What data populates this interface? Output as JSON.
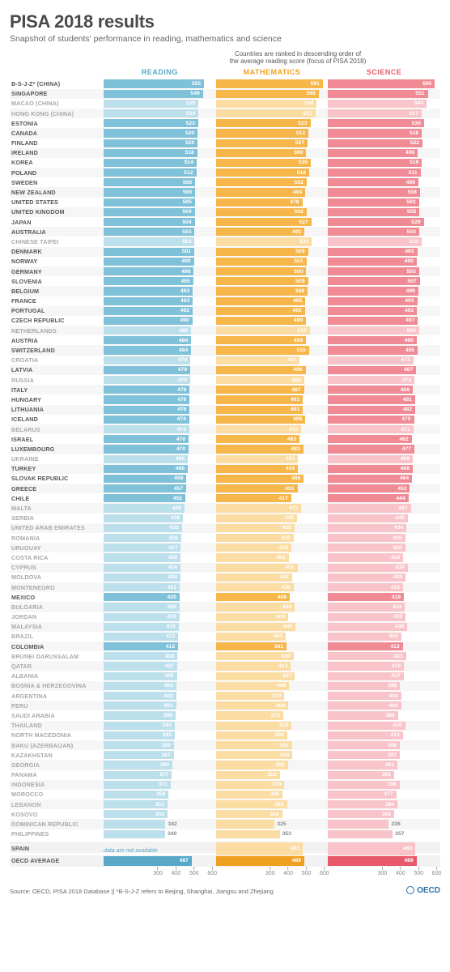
{
  "title": "PISA 2018 results",
  "subtitle": "Snapshot of students' performance in reading, mathematics and science",
  "rank_note": "Countries are ranked in descending order of\nthe average reading score (focus of PISA 2018)",
  "headers": {
    "reading": "READING",
    "math": "MATHEMATICS",
    "science": "SCIENCE"
  },
  "colors": {
    "reading_header": "#5aa8c8",
    "math_header": "#f0a020",
    "science_header": "#e85a6a",
    "reading_bar": "#7fc1d9",
    "math_bar": "#f6b64a",
    "science_bar": "#f08a95",
    "reading_muted": "#bcdfec",
    "math_muted": "#fbdca3",
    "science_muted": "#f8c3c9",
    "na_text": "#5aa8c8"
  },
  "axis": {
    "min": 250,
    "max": 620,
    "ticks": [
      300,
      400,
      500,
      600
    ]
  },
  "bar_max": 620,
  "rows": [
    {
      "name": "B-S-J-Z* (CHINA)",
      "r": 555,
      "m": 591,
      "s": 590
    },
    {
      "name": "SINGAPORE",
      "r": 549,
      "m": 569,
      "s": 551
    },
    {
      "name": "MACAO (CHINA)",
      "r": 525,
      "m": 558,
      "s": 544,
      "muted": true
    },
    {
      "name": "HONG KONG (CHINA)",
      "r": 524,
      "m": 551,
      "s": 517,
      "muted": true
    },
    {
      "name": "ESTONIA",
      "r": 523,
      "m": 523,
      "s": 530
    },
    {
      "name": "CANADA",
      "r": 520,
      "m": 512,
      "s": 518
    },
    {
      "name": "FINLAND",
      "r": 520,
      "m": 507,
      "s": 522
    },
    {
      "name": "IRELAND",
      "r": 518,
      "m": 500,
      "s": 496
    },
    {
      "name": "KOREA",
      "r": 514,
      "m": 526,
      "s": 519
    },
    {
      "name": "POLAND",
      "r": 512,
      "m": 516,
      "s": 511
    },
    {
      "name": "SWEDEN",
      "r": 506,
      "m": 502,
      "s": 499
    },
    {
      "name": "NEW ZEALAND",
      "r": 506,
      "m": 494,
      "s": 508
    },
    {
      "name": "UNITED STATES",
      "r": 505,
      "m": 478,
      "s": 502
    },
    {
      "name": "UNITED KINGDOM",
      "r": 504,
      "m": 502,
      "s": 505
    },
    {
      "name": "JAPAN",
      "r": 504,
      "m": 527,
      "s": 529
    },
    {
      "name": "AUSTRALIA",
      "r": 503,
      "m": 491,
      "s": 503
    },
    {
      "name": "CHINESE TAIPEI",
      "r": 503,
      "m": 531,
      "s": 516,
      "muted": true
    },
    {
      "name": "DENMARK",
      "r": 501,
      "m": 509,
      "s": 493
    },
    {
      "name": "NORWAY",
      "r": 499,
      "m": 501,
      "s": 490
    },
    {
      "name": "GERMANY",
      "r": 498,
      "m": 500,
      "s": 503
    },
    {
      "name": "SLOVENIA",
      "r": 495,
      "m": 509,
      "s": 507
    },
    {
      "name": "BELGIUM",
      "r": 493,
      "m": 508,
      "s": 499
    },
    {
      "name": "FRANCE",
      "r": 493,
      "m": 495,
      "s": 493
    },
    {
      "name": "PORTUGAL",
      "r": 492,
      "m": 492,
      "s": 492
    },
    {
      "name": "CZECH REPUBLIC",
      "r": 490,
      "m": 499,
      "s": 497
    },
    {
      "name": "NETHERLANDS",
      "r": 485,
      "m": 519,
      "s": 503,
      "muted": true
    },
    {
      "name": "AUSTRIA",
      "r": 484,
      "m": 499,
      "s": 490
    },
    {
      "name": "SWITZERLAND",
      "r": 484,
      "m": 515,
      "s": 495
    },
    {
      "name": "CROATIA",
      "r": 479,
      "m": 464,
      "s": 472,
      "muted": true
    },
    {
      "name": "LATVIA",
      "r": 479,
      "m": 496,
      "s": 487
    },
    {
      "name": "RUSSIA",
      "r": 479,
      "m": 488,
      "s": 478,
      "muted": true
    },
    {
      "name": "ITALY",
      "r": 476,
      "m": 487,
      "s": 468
    },
    {
      "name": "HUNGARY",
      "r": 476,
      "m": 481,
      "s": 481
    },
    {
      "name": "LITHUANIA",
      "r": 476,
      "m": 481,
      "s": 482
    },
    {
      "name": "ICELAND",
      "r": 474,
      "m": 495,
      "s": 475
    },
    {
      "name": "BELARUS",
      "r": 474,
      "m": 472,
      "s": 471,
      "muted": true
    },
    {
      "name": "ISRAEL",
      "r": 470,
      "m": 463,
      "s": 462
    },
    {
      "name": "LUXEMBOURG",
      "r": 470,
      "m": 483,
      "s": 477
    },
    {
      "name": "UKRAINE",
      "r": 466,
      "m": 453,
      "s": 469,
      "muted": true
    },
    {
      "name": "TURKEY",
      "r": 466,
      "m": 454,
      "s": 468
    },
    {
      "name": "SLOVAK REPUBLIC",
      "r": 458,
      "m": 486,
      "s": 464
    },
    {
      "name": "GREECE",
      "r": 457,
      "m": 451,
      "s": 452
    },
    {
      "name": "CHILE",
      "r": 452,
      "m": 417,
      "s": 444
    },
    {
      "name": "MALTA",
      "r": 448,
      "m": 472,
      "s": 457,
      "muted": true
    },
    {
      "name": "SERBIA",
      "r": 439,
      "m": 448,
      "s": 440,
      "muted": true
    },
    {
      "name": "UNITED ARAB EMIRATES",
      "r": 432,
      "m": 435,
      "s": 434,
      "muted": true
    },
    {
      "name": "ROMANIA",
      "r": 428,
      "m": 430,
      "s": 426,
      "muted": true
    },
    {
      "name": "URUGUAY",
      "r": 427,
      "m": 418,
      "s": 426,
      "muted": true
    },
    {
      "name": "COSTA RICA",
      "r": 426,
      "m": 402,
      "s": 416,
      "muted": true
    },
    {
      "name": "CYPRUS",
      "r": 424,
      "m": 451,
      "s": 439,
      "muted": true
    },
    {
      "name": "MOLDOVA",
      "r": 424,
      "m": 421,
      "s": 428,
      "muted": true
    },
    {
      "name": "MONTENEGRO",
      "r": 421,
      "m": 430,
      "s": 415,
      "muted": true
    },
    {
      "name": "MEXICO",
      "r": 420,
      "m": 409,
      "s": 419
    },
    {
      "name": "BULGARIA",
      "r": 420,
      "m": 436,
      "s": 424,
      "muted": true
    },
    {
      "name": "JORDAN",
      "r": 419,
      "m": 400,
      "s": 429,
      "muted": true
    },
    {
      "name": "MALAYSIA",
      "r": 415,
      "m": 440,
      "s": 438,
      "muted": true
    },
    {
      "name": "BRAZIL",
      "r": 413,
      "m": 384,
      "s": 404,
      "muted": true
    },
    {
      "name": "COLOMBIA",
      "r": 412,
      "m": 391,
      "s": 413
    },
    {
      "name": "BRUNEI DARUSSALAM",
      "r": 408,
      "m": 430,
      "s": 431,
      "muted": true
    },
    {
      "name": "QATAR",
      "r": 407,
      "m": 414,
      "s": 419,
      "muted": true
    },
    {
      "name": "ALBANIA",
      "r": 405,
      "m": 437,
      "s": 417,
      "muted": true
    },
    {
      "name": "BOSNIA & HERZEGOVINA",
      "r": 403,
      "m": 406,
      "s": 398,
      "muted": true
    },
    {
      "name": "ARGENTINA",
      "r": 402,
      "m": 379,
      "s": 404,
      "muted": true
    },
    {
      "name": "PERU",
      "r": 401,
      "m": 400,
      "s": 404,
      "muted": true
    },
    {
      "name": "SAUDI ARABIA",
      "r": 399,
      "m": 373,
      "s": 386,
      "muted": true
    },
    {
      "name": "THAILAND",
      "r": 393,
      "m": 419,
      "s": 426,
      "muted": true
    },
    {
      "name": "NORTH MACEDONIA",
      "r": 393,
      "m": 394,
      "s": 413,
      "muted": true
    },
    {
      "name": "BAKU (AZERBAIJAN)",
      "r": 389,
      "m": 420,
      "s": 398,
      "muted": true
    },
    {
      "name": "KAZAKHSTAN",
      "r": 387,
      "m": 423,
      "s": 397,
      "muted": true
    },
    {
      "name": "GEORGIA",
      "r": 380,
      "m": 398,
      "s": 383,
      "muted": true
    },
    {
      "name": "PANAMA",
      "r": 377,
      "m": 353,
      "s": 365,
      "muted": true
    },
    {
      "name": "INDONESIA",
      "r": 371,
      "m": 379,
      "s": 396,
      "muted": true
    },
    {
      "name": "MOROCCO",
      "r": 359,
      "m": 368,
      "s": 377,
      "muted": true
    },
    {
      "name": "LEBANON",
      "r": 353,
      "m": 393,
      "s": 384,
      "muted": true
    },
    {
      "name": "KOSOVO",
      "r": 353,
      "m": 366,
      "s": 365,
      "muted": true
    },
    {
      "name": "DOMINICAN REPUBLIC",
      "r": 342,
      "m": 325,
      "s": 336,
      "muted": true,
      "outside": true
    },
    {
      "name": "PHILIPPINES",
      "r": 340,
      "m": 353,
      "s": 357,
      "muted": true,
      "outside": true
    }
  ],
  "spain": {
    "name": "SPAIN",
    "r_text": "data are not available",
    "m": 481,
    "s": 483
  },
  "oecd_avg": {
    "name": "OECD AVERAGE",
    "r": 487,
    "m": 489,
    "s": 489
  },
  "source": "Source: OECD, PISA 2018 Database  ||  *B-S-J-Z refers to Beijing, Shanghai, Jiangsu and Zhejiang",
  "logo_text": "OECD"
}
